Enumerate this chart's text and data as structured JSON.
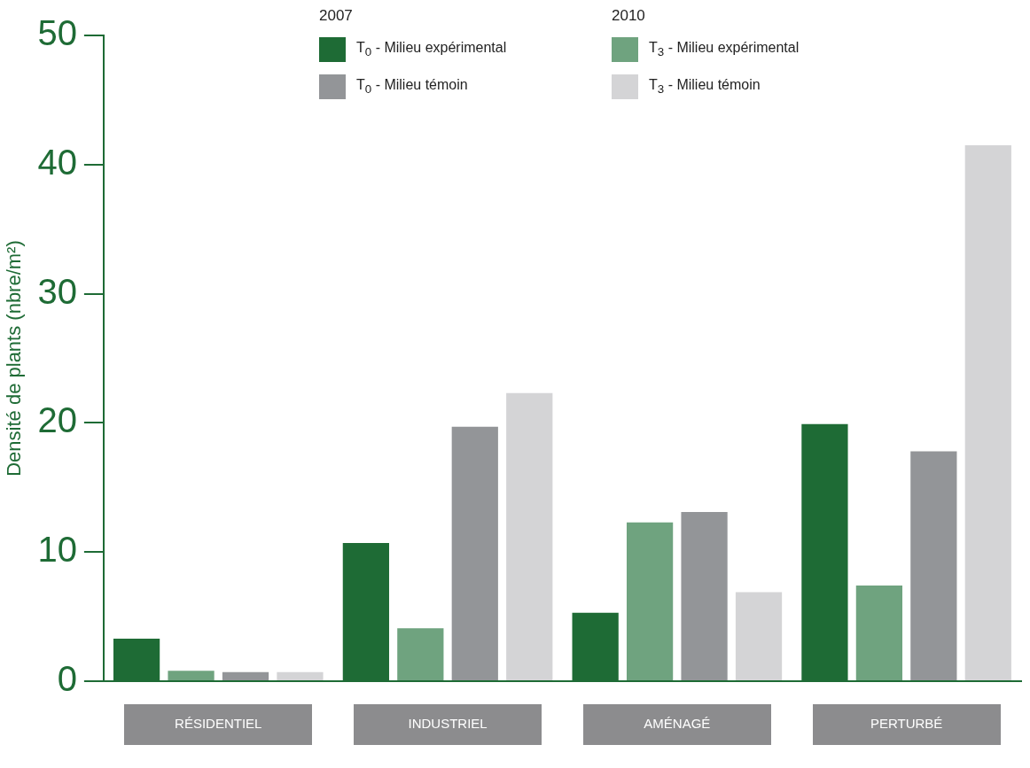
{
  "chart_data": {
    "type": "bar",
    "ylabel": "Densité de plants (nbre/m²)",
    "categories": [
      "RÉSIDENTIEL",
      "INDUSTRIEL",
      "AMÉNAGÉ",
      "PERTURBÉ"
    ],
    "series": [
      {
        "name": "T$_{0}$ - Milieu expérimental",
        "color": "#1e6b35",
        "values": [
          3.3,
          10.7,
          5.3,
          19.9
        ]
      },
      {
        "name": "T$_{3}$ - Milieu expérimental",
        "color": "#6fa37f",
        "values": [
          0.8,
          4.1,
          12.3,
          7.4
        ]
      },
      {
        "name": "T$_{0}$ - Milieu témoin",
        "color": "#939598",
        "values": [
          0.7,
          19.7,
          13.1,
          17.8
        ]
      },
      {
        "name": "T$_{3}$ - Milieu témoin",
        "color": "#d4d4d6",
        "values": [
          0.7,
          22.3,
          6.9,
          41.5
        ]
      }
    ],
    "annotations": [
      "2007",
      "2010"
    ],
    "ylim": [
      0,
      50
    ],
    "yticks": [
      0,
      10,
      20,
      30,
      40,
      50
    ],
    "grid": false,
    "legend": "top"
  }
}
